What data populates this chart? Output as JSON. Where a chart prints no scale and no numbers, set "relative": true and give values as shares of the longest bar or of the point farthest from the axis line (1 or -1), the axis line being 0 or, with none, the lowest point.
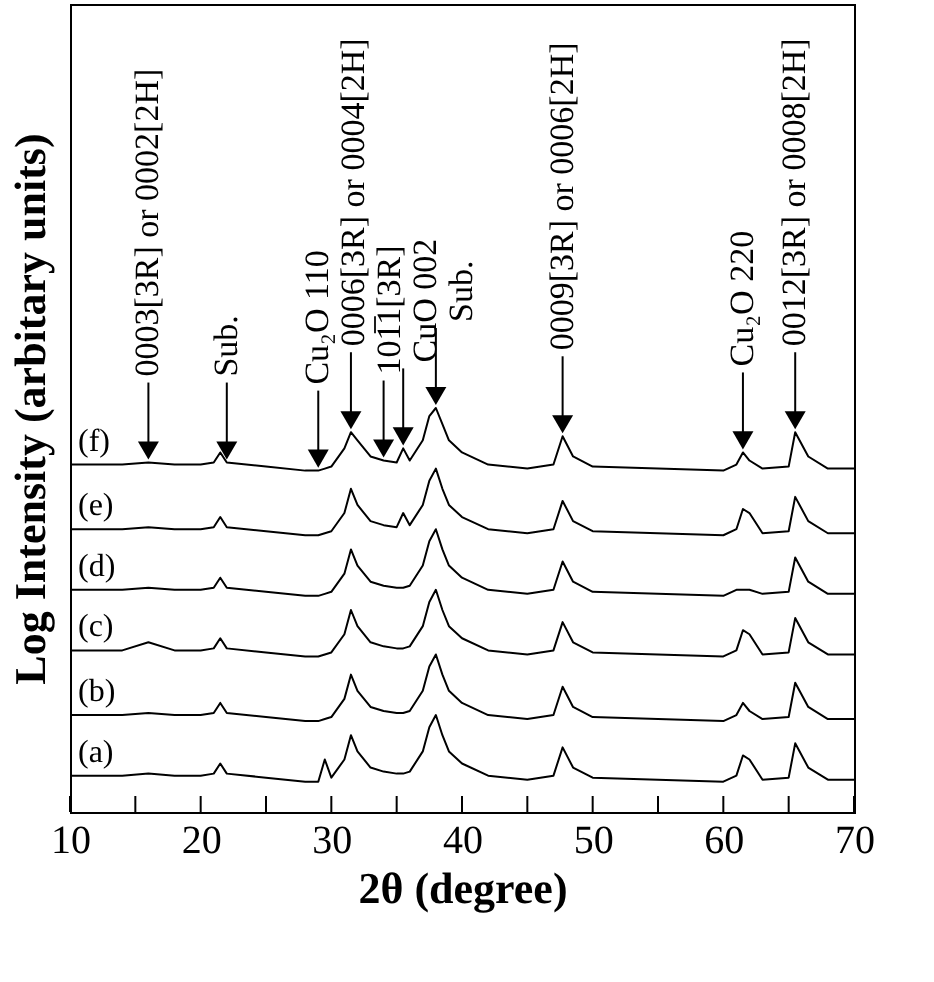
{
  "chart_data": {
    "type": "line",
    "relative": true,
    "xlabel": "2θ (degree)",
    "ylabel": "Log Intensity (arbitary units)",
    "xlim": [
      10,
      70
    ],
    "xticks": [
      10,
      {
        "value": 15,
        "label": null
      },
      20,
      {
        "value": 25,
        "label": null
      },
      30,
      {
        "value": 35,
        "label": null
      },
      40,
      {
        "value": 45,
        "label": null
      },
      50,
      {
        "value": 55,
        "label": null
      },
      60,
      {
        "value": 65,
        "label": null
      },
      70
    ],
    "grid": false,
    "legend": "left",
    "marker": "none",
    "line_style": "solid",
    "x": [
      10,
      14,
      16,
      18,
      20,
      21,
      21.5,
      22,
      25,
      28,
      29,
      29.5,
      30,
      31,
      31.5,
      32,
      33,
      34,
      35,
      35.5,
      36,
      37,
      37.5,
      38,
      38.5,
      39,
      40,
      42,
      45,
      47,
      47.7,
      48.5,
      50,
      55,
      60,
      61,
      61.5,
      62,
      63,
      65,
      65.5,
      66.5,
      68,
      70
    ],
    "series": [
      {
        "name": "(a)",
        "color": "#000000",
        "values": [
          0.09,
          0.09,
          0.095,
          0.09,
          0.09,
          0.095,
          0.12,
          0.095,
          0.085,
          0.075,
          0.075,
          0.13,
          0.085,
          0.13,
          0.19,
          0.15,
          0.11,
          0.1,
          0.095,
          0.095,
          0.1,
          0.15,
          0.21,
          0.24,
          0.19,
          0.15,
          0.12,
          0.09,
          0.08,
          0.09,
          0.16,
          0.11,
          0.085,
          0.08,
          0.075,
          0.09,
          0.14,
          0.13,
          0.08,
          0.085,
          0.17,
          0.11,
          0.08,
          0.08
        ]
      },
      {
        "name": "(b)",
        "color": "#000000",
        "values": [
          0.24,
          0.24,
          0.245,
          0.24,
          0.24,
          0.245,
          0.27,
          0.245,
          0.235,
          0.225,
          0.225,
          0.23,
          0.235,
          0.28,
          0.34,
          0.3,
          0.26,
          0.25,
          0.245,
          0.245,
          0.25,
          0.3,
          0.36,
          0.39,
          0.34,
          0.3,
          0.27,
          0.24,
          0.23,
          0.24,
          0.31,
          0.26,
          0.235,
          0.23,
          0.225,
          0.24,
          0.27,
          0.25,
          0.23,
          0.235,
          0.32,
          0.26,
          0.23,
          0.23
        ]
      },
      {
        "name": "(c)",
        "color": "#000000",
        "values": [
          0.4,
          0.4,
          0.42,
          0.4,
          0.4,
          0.405,
          0.43,
          0.405,
          0.395,
          0.385,
          0.385,
          0.39,
          0.395,
          0.44,
          0.5,
          0.46,
          0.42,
          0.41,
          0.405,
          0.405,
          0.41,
          0.46,
          0.52,
          0.55,
          0.5,
          0.46,
          0.43,
          0.4,
          0.39,
          0.4,
          0.47,
          0.42,
          0.395,
          0.39,
          0.385,
          0.4,
          0.45,
          0.44,
          0.39,
          0.395,
          0.48,
          0.42,
          0.39,
          0.39
        ]
      },
      {
        "name": "(d)",
        "color": "#000000",
        "values": [
          0.55,
          0.55,
          0.555,
          0.55,
          0.55,
          0.555,
          0.58,
          0.555,
          0.545,
          0.535,
          0.535,
          0.54,
          0.545,
          0.59,
          0.65,
          0.61,
          0.57,
          0.56,
          0.555,
          0.555,
          0.56,
          0.61,
          0.67,
          0.7,
          0.65,
          0.61,
          0.58,
          0.55,
          0.54,
          0.55,
          0.62,
          0.57,
          0.545,
          0.54,
          0.535,
          0.55,
          0.55,
          0.55,
          0.54,
          0.545,
          0.63,
          0.57,
          0.54,
          0.54
        ]
      },
      {
        "name": "(e)",
        "color": "#000000",
        "values": [
          0.7,
          0.7,
          0.705,
          0.7,
          0.7,
          0.705,
          0.73,
          0.705,
          0.695,
          0.685,
          0.685,
          0.69,
          0.695,
          0.74,
          0.8,
          0.76,
          0.72,
          0.71,
          0.705,
          0.74,
          0.71,
          0.76,
          0.82,
          0.85,
          0.8,
          0.76,
          0.73,
          0.7,
          0.69,
          0.7,
          0.77,
          0.72,
          0.695,
          0.69,
          0.685,
          0.7,
          0.75,
          0.74,
          0.69,
          0.695,
          0.78,
          0.72,
          0.69,
          0.69
        ]
      },
      {
        "name": "(f)",
        "color": "#000000",
        "values": [
          0.86,
          0.86,
          0.865,
          0.86,
          0.86,
          0.865,
          0.89,
          0.865,
          0.855,
          0.845,
          0.845,
          0.85,
          0.855,
          0.9,
          0.94,
          0.92,
          0.88,
          0.87,
          0.865,
          0.9,
          0.87,
          0.92,
          0.98,
          1.0,
          0.96,
          0.92,
          0.89,
          0.86,
          0.85,
          0.86,
          0.93,
          0.88,
          0.855,
          0.85,
          0.845,
          0.86,
          0.89,
          0.87,
          0.85,
          0.855,
          0.94,
          0.88,
          0.85,
          0.85
        ]
      }
    ],
    "annotations": [
      {
        "text": "0003[3R] or 0002[2H]",
        "x": 16,
        "y": 0.865
      },
      {
        "text": "Sub.",
        "x": 22,
        "y": 0.865
      },
      {
        "text": "Cu₂O 110",
        "x": 29,
        "y": 0.845
      },
      {
        "text": "0006[3R] or 0004[2H]",
        "x": 31.5,
        "y": 0.94
      },
      {
        "text": "101̅1[3R]",
        "x": 34,
        "y": 0.87
      },
      {
        "text": "CuO 002",
        "x": 35.5,
        "y": 0.9
      },
      {
        "text": "Sub.",
        "x": 38,
        "y": 1.0
      },
      {
        "text": "0009[3R] or 0006[2H]",
        "x": 47.7,
        "y": 0.93
      },
      {
        "text": "Cu₂O 220",
        "x": 61.5,
        "y": 0.89
      },
      {
        "text": "0012[3R] or 0008[2H]",
        "x": 65.5,
        "y": 0.94
      }
    ]
  }
}
